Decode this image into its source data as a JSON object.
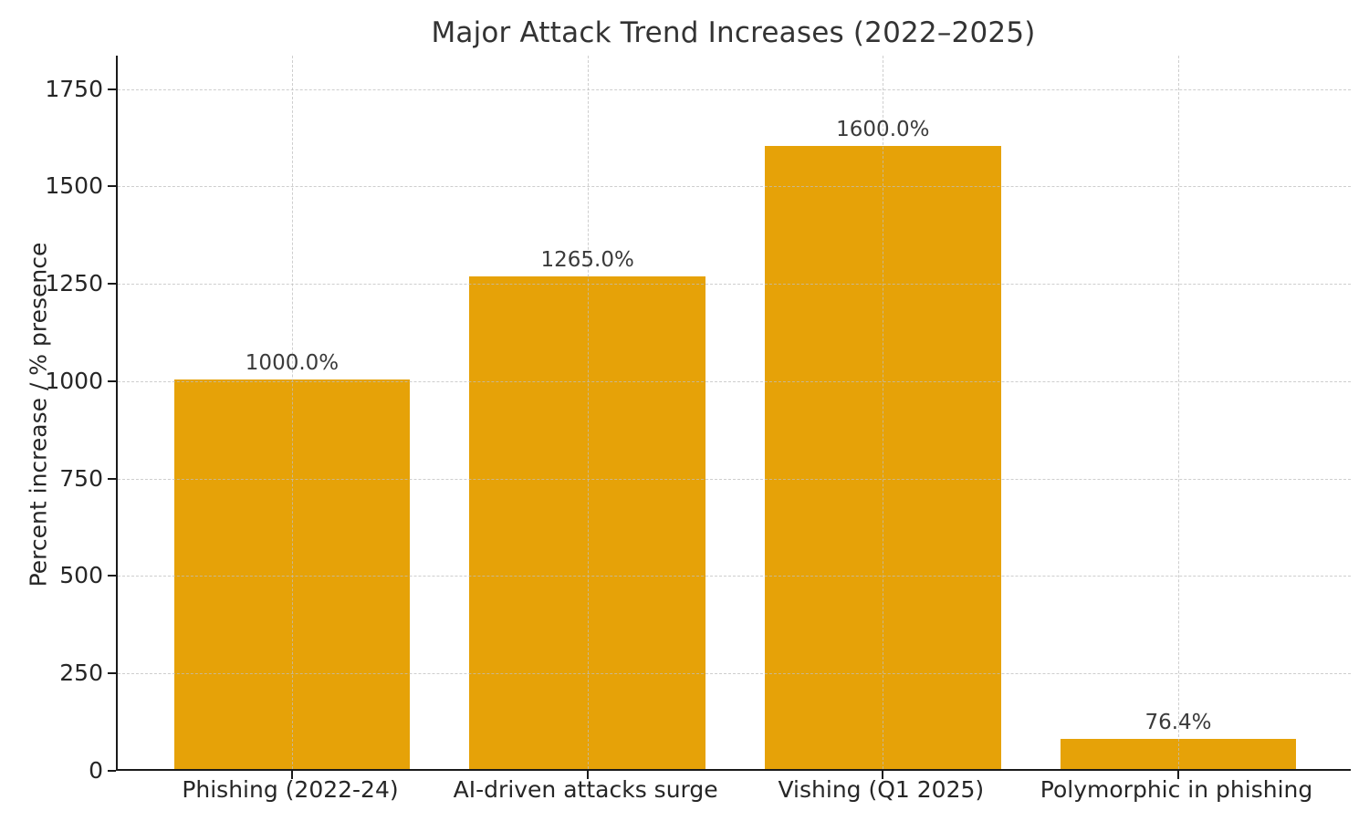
{
  "chart_data": {
    "type": "bar",
    "title": "Major Attack Trend Increases (2022–2025)",
    "xlabel": "",
    "ylabel": "Percent increase / % presence",
    "categories": [
      "Phishing (2022-24)",
      "AI-driven attacks surge",
      "Vishing (Q1 2025)",
      "Polymorphic in phishing"
    ],
    "values": [
      1000.0,
      1265.0,
      1600.0,
      76.4
    ],
    "value_labels": [
      "1000.0%",
      "1265.0%",
      "1600.0%",
      "76.4%"
    ],
    "yticks": [
      0,
      250,
      500,
      750,
      1000,
      1250,
      1500,
      1750
    ],
    "ylim": [
      0,
      1836
    ],
    "bar_color": "#E6A208",
    "grid": "dashed, both axes, drawn above bars",
    "legend": "none",
    "background_color": "#ffffff"
  }
}
